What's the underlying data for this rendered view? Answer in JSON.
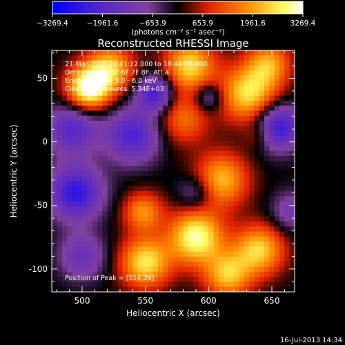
{
  "chart_data": {
    "type": "heatmap",
    "title": "Reconstructed RHESSI Image",
    "xlabel": "Heliocentric X (arcsec)",
    "ylabel": "Heliocentric Y (arcsec)",
    "xlim": [
      476,
      668
    ],
    "ylim": [
      -118,
      72
    ],
    "x_ticks": [
      500,
      550,
      600,
      650
    ],
    "y_ticks": [
      -100,
      -50,
      0,
      50
    ],
    "colorbar": {
      "range": [
        -3269.4,
        3269.4
      ],
      "ticks": [
        -3269.4,
        -1961.6,
        -653.9,
        653.9,
        1961.6,
        3269.4
      ],
      "tick_labels": [
        "−3269.4",
        "−1961.6",
        "−653.9",
        "653.9",
        "1961.6",
        "3269.4"
      ],
      "unit_label": "(photons cm⁻² s⁻¹ asec⁻²)",
      "colors": [
        "#0000ff",
        "#5a28c8",
        "#8040a0",
        "#000000",
        "#e02000",
        "#ff9000",
        "#ffff60",
        "#ffffff"
      ]
    },
    "annotations": [
      "21-Mar-2006 18:41:12.000 to 18:44:18.000",
      "Detectors: 4F 5F 6F 7F 8F, Att 4",
      "Energy Range: 3.0 - 6.0 keV",
      "Clean: Total counts: 5.34E+03"
    ],
    "peak_label": "Position of Peak = [514,39]",
    "peak": [
      514,
      39
    ],
    "grid_nx": 48,
    "grid_ny": 48,
    "sources": [
      {
        "x": 505,
        "y": 42,
        "amp": 3269,
        "s": 12
      },
      {
        "x": 522,
        "y": 58,
        "amp": 2300,
        "s": 13
      },
      {
        "x": 585,
        "y": 60,
        "amp": 2500,
        "s": 14
      },
      {
        "x": 632,
        "y": 38,
        "amp": 2600,
        "s": 16
      },
      {
        "x": 648,
        "y": 62,
        "amp": 1800,
        "s": 12
      },
      {
        "x": 580,
        "y": 18,
        "amp": 1500,
        "s": 14
      },
      {
        "x": 640,
        "y": 5,
        "amp": 800,
        "s": 8
      },
      {
        "x": 610,
        "y": -30,
        "amp": 2200,
        "s": 15
      },
      {
        "x": 548,
        "y": -55,
        "amp": 1800,
        "s": 11
      },
      {
        "x": 590,
        "y": -75,
        "amp": 3000,
        "s": 15
      },
      {
        "x": 550,
        "y": -95,
        "amp": 2600,
        "s": 14
      },
      {
        "x": 640,
        "y": -85,
        "amp": 2400,
        "s": 14
      },
      {
        "x": 615,
        "y": -105,
        "amp": 2200,
        "s": 13
      },
      {
        "x": 495,
        "y": -40,
        "amp": -2600,
        "s": 15
      },
      {
        "x": 492,
        "y": 10,
        "amp": -2000,
        "s": 14
      },
      {
        "x": 540,
        "y": 5,
        "amp": -2200,
        "s": 15
      },
      {
        "x": 558,
        "y": 38,
        "amp": -2400,
        "s": 10
      },
      {
        "x": 655,
        "y": 12,
        "amp": -2600,
        "s": 13
      },
      {
        "x": 590,
        "y": -40,
        "amp": -1200,
        "s": 10
      },
      {
        "x": 500,
        "y": -90,
        "amp": -1500,
        "s": 13
      },
      {
        "x": 665,
        "y": -55,
        "amp": -1200,
        "s": 11
      },
      {
        "x": 600,
        "y": 35,
        "amp": -1400,
        "s": 8
      }
    ]
  },
  "footer": {
    "timestamp": "16-Jul-2013 14:34"
  }
}
